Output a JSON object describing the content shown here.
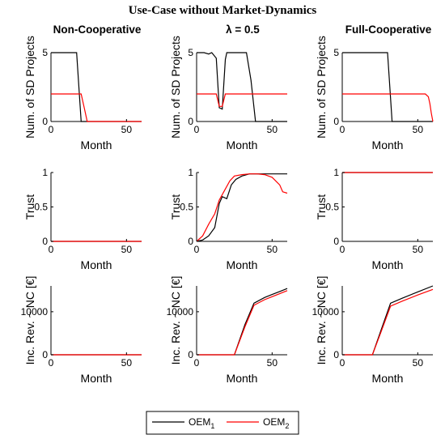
{
  "figure": {
    "title": "Use-Case without Market-Dynamics",
    "columns": [
      "Non-Cooperative",
      "λ = 0.5",
      "Full-Cooperative"
    ]
  },
  "legend": {
    "items": [
      {
        "label": "OEM",
        "sub": "1",
        "color": "#000000"
      },
      {
        "label": "OEM",
        "sub": "2",
        "color": "#ff0000"
      }
    ],
    "placement": "bottom-center"
  },
  "chart_data": [
    {
      "type": "line",
      "row": "projects",
      "column": "Non-Cooperative",
      "xlabel": "Month",
      "ylabel": "Num. of SD Projects",
      "xlim": [
        0,
        60
      ],
      "ylim": [
        0,
        5
      ],
      "xticks": [
        0,
        50
      ],
      "yticks": [
        0,
        5
      ],
      "series": [
        {
          "name": "OEM₁",
          "color": "#000000",
          "x": [
            0,
            17,
            20,
            60
          ],
          "y": [
            5,
            5,
            0,
            0
          ]
        },
        {
          "name": "OEM₂",
          "color": "#ff0000",
          "x": [
            0,
            20,
            22,
            24,
            60
          ],
          "y": [
            2,
            2,
            1,
            0,
            0
          ]
        }
      ]
    },
    {
      "type": "line",
      "row": "projects",
      "column": "λ = 0.5",
      "xlabel": "Month",
      "ylabel": "Num. of SD Projects",
      "xlim": [
        0,
        60
      ],
      "ylim": [
        0,
        5
      ],
      "xticks": [
        0,
        50
      ],
      "yticks": [
        0,
        5
      ],
      "series": [
        {
          "name": "OEM₁",
          "color": "#000000",
          "x": [
            0,
            5,
            8,
            10,
            13,
            15,
            17,
            19,
            20,
            23,
            33,
            36,
            39,
            60
          ],
          "y": [
            5,
            5,
            4.9,
            5,
            4.6,
            1,
            0.9,
            4.5,
            5,
            5,
            5,
            3,
            0,
            0
          ]
        },
        {
          "name": "OEM₂",
          "color": "#ff0000",
          "x": [
            0,
            13,
            15,
            17,
            19,
            20,
            60
          ],
          "y": [
            2,
            2,
            1.1,
            1.1,
            2,
            2,
            2
          ]
        }
      ]
    },
    {
      "type": "line",
      "row": "projects",
      "column": "Full-Cooperative",
      "xlabel": "Month",
      "ylabel": "Num. of SD Projects",
      "xlim": [
        0,
        60
      ],
      "ylim": [
        0,
        5
      ],
      "xticks": [
        0,
        50
      ],
      "yticks": [
        0,
        5
      ],
      "series": [
        {
          "name": "OEM₁",
          "color": "#000000",
          "x": [
            0,
            30,
            33,
            60
          ],
          "y": [
            5,
            5,
            0,
            0
          ]
        },
        {
          "name": "OEM₂",
          "color": "#ff0000",
          "x": [
            0,
            55,
            57,
            58,
            59,
            60
          ],
          "y": [
            2,
            2,
            1.8,
            1.3,
            0.6,
            0
          ]
        }
      ]
    },
    {
      "type": "line",
      "row": "trust",
      "column": "Non-Cooperative",
      "xlabel": "Month",
      "ylabel": "Trust",
      "xlim": [
        0,
        60
      ],
      "ylim": [
        0,
        1
      ],
      "xticks": [
        0,
        50
      ],
      "yticks": [
        0,
        0.5,
        1
      ],
      "series": [
        {
          "name": "OEM₁",
          "color": "#000000",
          "x": [
            0,
            60
          ],
          "y": [
            0,
            0
          ]
        },
        {
          "name": "OEM₂",
          "color": "#ff0000",
          "x": [
            0,
            60
          ],
          "y": [
            0,
            0
          ]
        }
      ]
    },
    {
      "type": "line",
      "row": "trust",
      "column": "λ = 0.5",
      "xlabel": "Month",
      "ylabel": "Trust",
      "xlim": [
        0,
        60
      ],
      "ylim": [
        0,
        1
      ],
      "xticks": [
        0,
        50
      ],
      "yticks": [
        0,
        0.5,
        1
      ],
      "series": [
        {
          "name": "OEM₁",
          "color": "#000000",
          "x": [
            0,
            4,
            8,
            12,
            15,
            17,
            20,
            23,
            26,
            30,
            35,
            40,
            60
          ],
          "y": [
            0,
            0.02,
            0.08,
            0.2,
            0.55,
            0.65,
            0.62,
            0.82,
            0.9,
            0.95,
            0.98,
            0.98,
            0.98
          ]
        },
        {
          "name": "OEM₂",
          "color": "#ff0000",
          "x": [
            0,
            4,
            8,
            12,
            15,
            18,
            22,
            25,
            30,
            35,
            40,
            45,
            50,
            55,
            57,
            60
          ],
          "y": [
            0,
            0.08,
            0.25,
            0.4,
            0.6,
            0.72,
            0.88,
            0.95,
            0.97,
            0.98,
            0.98,
            0.97,
            0.93,
            0.82,
            0.72,
            0.7
          ]
        }
      ]
    },
    {
      "type": "line",
      "row": "trust",
      "column": "Full-Cooperative",
      "xlabel": "Month",
      "ylabel": "Trust",
      "xlim": [
        0,
        60
      ],
      "ylim": [
        0,
        1
      ],
      "xticks": [
        0,
        50
      ],
      "yticks": [
        0,
        0.5,
        1
      ],
      "series": [
        {
          "name": "OEM₁",
          "color": "#000000",
          "x": [
            0,
            60
          ],
          "y": [
            1,
            1
          ]
        },
        {
          "name": "OEM₂",
          "color": "#ff0000",
          "x": [
            0,
            60
          ],
          "y": [
            1,
            1
          ]
        }
      ]
    },
    {
      "type": "line",
      "row": "revenue",
      "column": "Non-Cooperative",
      "xlabel": "Month",
      "ylabel": "Inc. Rev. ~ NC [€]",
      "xlim": [
        0,
        60
      ],
      "ylim": [
        0,
        16000
      ],
      "xticks": [
        0,
        50
      ],
      "yticks": [
        0,
        10000
      ],
      "series": [
        {
          "name": "OEM₁",
          "color": "#000000",
          "x": [
            0,
            60
          ],
          "y": [
            0,
            0
          ]
        },
        {
          "name": "OEM₂",
          "color": "#ff0000",
          "x": [
            0,
            60
          ],
          "y": [
            0,
            0
          ]
        }
      ]
    },
    {
      "type": "line",
      "row": "revenue",
      "column": "λ = 0.5",
      "xlabel": "Month",
      "ylabel": "Inc. Rev. ~ NC [€]",
      "xlim": [
        0,
        60
      ],
      "ylim": [
        0,
        16000
      ],
      "xticks": [
        0,
        50
      ],
      "yticks": [
        0,
        10000
      ],
      "series": [
        {
          "name": "OEM₁",
          "color": "#000000",
          "x": [
            0,
            25,
            32,
            38,
            45,
            50,
            55,
            60
          ],
          "y": [
            0,
            0,
            7000,
            12000,
            13300,
            14000,
            14700,
            15400
          ]
        },
        {
          "name": "OEM₂",
          "color": "#ff0000",
          "x": [
            0,
            25,
            32,
            38,
            45,
            50,
            55,
            60
          ],
          "y": [
            0,
            0,
            6500,
            11500,
            12800,
            13500,
            14200,
            14900
          ]
        }
      ]
    },
    {
      "type": "line",
      "row": "revenue",
      "column": "Full-Cooperative",
      "xlabel": "Month",
      "ylabel": "Inc. Rev. ~ NC [€]",
      "xlim": [
        0,
        60
      ],
      "ylim": [
        0,
        16000
      ],
      "xticks": [
        0,
        50
      ],
      "yticks": [
        0,
        10000
      ],
      "series": [
        {
          "name": "OEM₁",
          "color": "#000000",
          "x": [
            0,
            20,
            26,
            32,
            40,
            50,
            60
          ],
          "y": [
            0,
            0,
            6000,
            12000,
            13200,
            14600,
            16000
          ]
        },
        {
          "name": "OEM₂",
          "color": "#ff0000",
          "x": [
            0,
            20,
            26,
            32,
            40,
            50,
            60
          ],
          "y": [
            0,
            0,
            5600,
            11300,
            12500,
            13900,
            15200
          ]
        }
      ]
    }
  ]
}
